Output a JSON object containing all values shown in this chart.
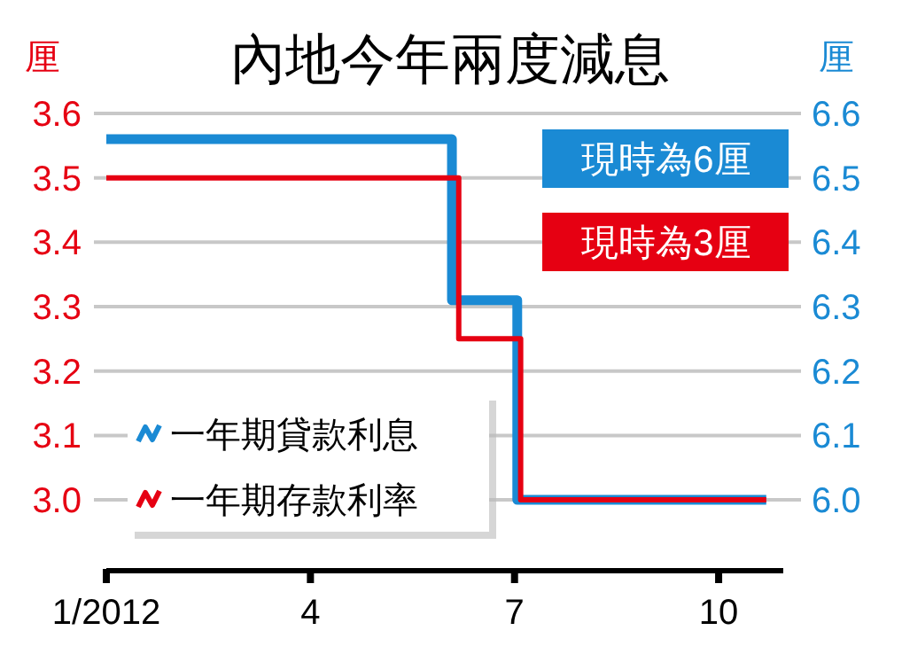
{
  "chart_data": {
    "type": "step",
    "title": "內地今年兩度減息",
    "ylabel": "厘",
    "y2label": "厘",
    "xlim": [
      1,
      10.95
    ],
    "xticks": [
      {
        "value": 1,
        "label": "1/2012"
      },
      4,
      7,
      10
    ],
    "ylim": [
      2.89,
      3.6
    ],
    "yticks": [
      {
        "value": 3,
        "label": "3.0"
      },
      3.1,
      3.2,
      3.3,
      3.4,
      3.5,
      3.6
    ],
    "y2lim": [
      5.89,
      6.6
    ],
    "y2ticks": [
      {
        "value": 6,
        "label": "6.0"
      },
      6.1,
      6.2,
      6.3,
      6.4,
      6.5,
      6.6
    ],
    "grid": "y",
    "legend": "bottom left",
    "series": [
      {
        "name": "一年期貸款利息",
        "color": "#1a8ad4",
        "axis": "y2",
        "x": [
          1,
          6.08,
          7.04,
          10.7
        ],
        "values": [
          6.56,
          6.31,
          6.0,
          6.0
        ]
      },
      {
        "name": "一年期存款利率",
        "color": "#e60012",
        "axis": "y",
        "x": [
          1,
          6.18,
          7.09,
          10.7
        ],
        "values": [
          3.5,
          3.25,
          3.0,
          3.0
        ]
      }
    ],
    "annotations": [
      "現時為6厘",
      "現時為3厘"
    ]
  }
}
